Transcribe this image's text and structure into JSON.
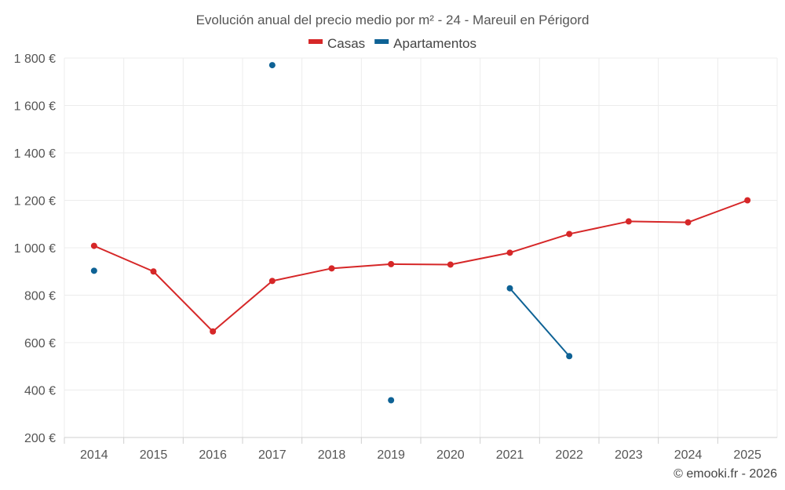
{
  "chart_data": {
    "type": "line",
    "title": "Evolución anual del precio medio por m² - 24 - Mareuil en Périgord",
    "xlabel": "",
    "ylabel": "",
    "categories": [
      "2014",
      "2015",
      "2016",
      "2017",
      "2018",
      "2019",
      "2020",
      "2021",
      "2022",
      "2023",
      "2024",
      "2025"
    ],
    "ylim": [
      200,
      1800
    ],
    "yticks": [
      200,
      400,
      600,
      800,
      1000,
      1200,
      1400,
      1600,
      1800
    ],
    "ytick_labels": [
      "200 €",
      "400 €",
      "600 €",
      "800 €",
      "1 000 €",
      "1 200 €",
      "1 400 €",
      "1 600 €",
      "1 800 €"
    ],
    "grid": true,
    "legend_position": "top-center",
    "series": [
      {
        "name": "Casas",
        "color": "#d62728",
        "values": [
          1008,
          900,
          647,
          860,
          913,
          931,
          929,
          979,
          1058,
          1111,
          1107,
          1200
        ]
      },
      {
        "name": "Apartamentos",
        "color": "#0e6295",
        "values": [
          903,
          null,
          null,
          1770,
          null,
          357,
          null,
          829,
          543,
          null,
          null,
          null
        ]
      }
    ]
  },
  "credit": "© emooki.fr - 2026"
}
